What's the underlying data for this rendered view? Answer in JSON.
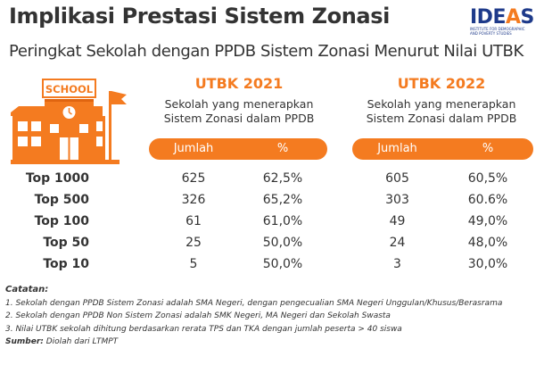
{
  "header": {
    "title": "Implikasi Prestasi Sistem Zonasi",
    "subtitle": "Peringkat Sekolah dengan PPDB Sistem Zonasi Menurut Nilai UTBK"
  },
  "logo": {
    "text_main": "IDE",
    "text_accent": "A",
    "text_end": "S",
    "subtext": "INSTITUTE FOR DEMOGRAPHIC AND POVERTY STUDIES"
  },
  "icon": {
    "sign_text": "SCHOOL"
  },
  "groups": [
    {
      "heading": "UTBK 2021",
      "desc_line1": "Sekolah yang menerapkan",
      "desc_line2": "Sistem Zonasi dalam PPDB",
      "col1": "Jumlah",
      "col2": "%"
    },
    {
      "heading": "UTBK 2022",
      "desc_line1": "Sekolah yang menerapkan",
      "desc_line2": "Sistem Zonasi dalam PPDB",
      "col1": "Jumlah",
      "col2": "%"
    }
  ],
  "rows": [
    {
      "label": "Top 1000",
      "c2021": "625",
      "p2021": "62,5%",
      "c2022": "605",
      "p2022": "60,5%"
    },
    {
      "label": "Top 500",
      "c2021": "326",
      "p2021": "65,2%",
      "c2022": "303",
      "p2022": "60.6%"
    },
    {
      "label": "Top 100",
      "c2021": "61",
      "p2021": "61,0%",
      "c2022": "49",
      "p2022": "49,0%"
    },
    {
      "label": "Top 50",
      "c2021": "25",
      "p2021": "50,0%",
      "c2022": "24",
      "p2022": "48,0%"
    },
    {
      "label": "Top 10",
      "c2021": "5",
      "p2021": "50,0%",
      "c2022": "3",
      "p2022": "30,0%"
    }
  ],
  "notes": {
    "title": "Catatan:",
    "items": [
      "1. Sekolah dengan PPDB Sistem Zonasi adalah SMA Negeri, dengan pengecualian SMA Negeri Unggulan/Khusus/Berasrama",
      "2. Sekolah dengan PPDB Non Sistem Zonasi adalah SMK Negeri, MA Negeri dan Sekolah Swasta",
      "3. Nilai UTBK sekolah dihitung berdasarkan rerata TPS dan TKA dengan jumlah peserta > 40 siswa"
    ],
    "source_label": "Sumber:",
    "source_text": "Diolah dari LTMPT"
  },
  "colors": {
    "accent": "#f47b20",
    "text": "#333333",
    "brand": "#1e3a8a"
  }
}
